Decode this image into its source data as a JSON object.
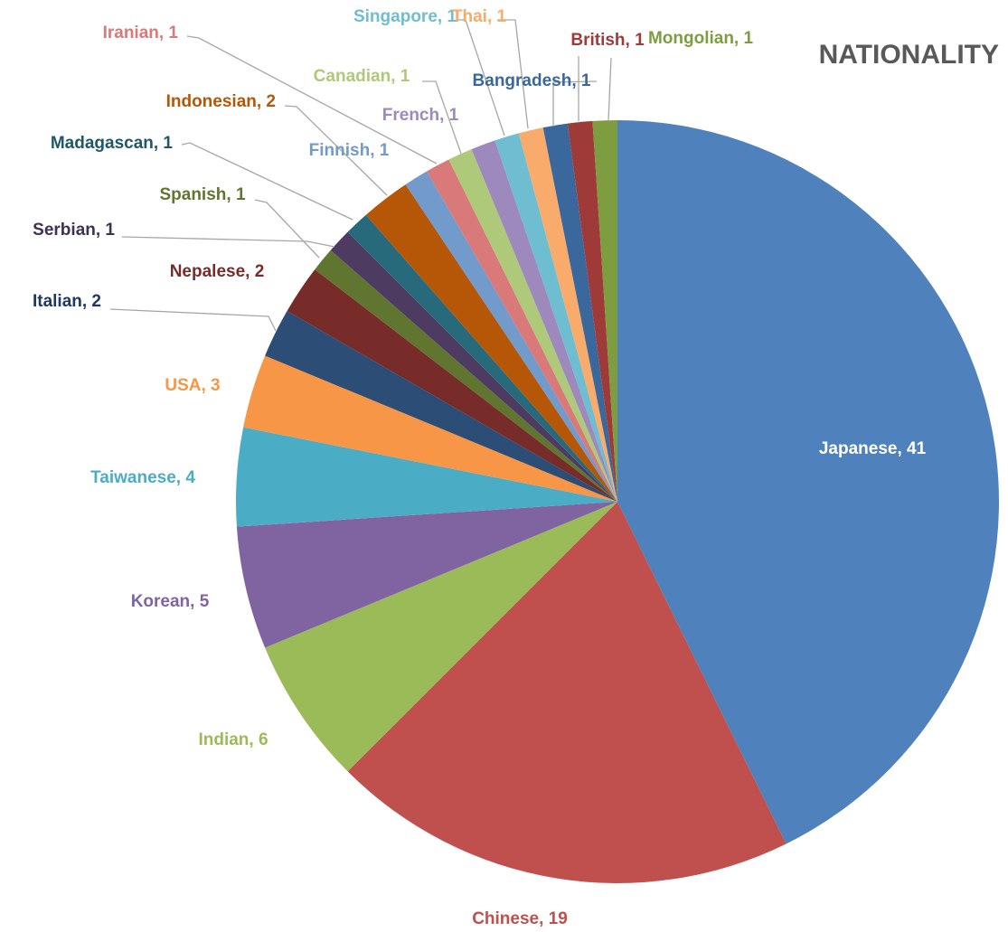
{
  "chart_data": {
    "type": "pie",
    "title": "NATIONALITY",
    "slices": [
      {
        "label": "Japanese",
        "value": 41,
        "color": "#4f81bd"
      },
      {
        "label": "Chinese",
        "value": 19,
        "color": "#c0504d"
      },
      {
        "label": "Indian",
        "value": 6,
        "color": "#9bbb59"
      },
      {
        "label": "Korean",
        "value": 5,
        "color": "#8064a2"
      },
      {
        "label": "Taiwanese",
        "value": 4,
        "color": "#4bacc6"
      },
      {
        "label": "USA",
        "value": 3,
        "color": "#f79646"
      },
      {
        "label": "Italian",
        "value": 2,
        "color": "#2c4d75"
      },
      {
        "label": "Nepalese",
        "value": 2,
        "color": "#772c2a"
      },
      {
        "label": "Spanish",
        "value": 1,
        "color": "#5f7530"
      },
      {
        "label": "Serbian",
        "value": 1,
        "color": "#4d3b62"
      },
      {
        "label": "Madagascan",
        "value": 1,
        "color": "#276a7c"
      },
      {
        "label": "Indonesian",
        "value": 2,
        "color": "#b65708"
      },
      {
        "label": "Finnish",
        "value": 1,
        "color": "#729aca"
      },
      {
        "label": "Iranian",
        "value": 1,
        "color": "#d9797a"
      },
      {
        "label": "Canadian",
        "value": 1,
        "color": "#afc97a"
      },
      {
        "label": "French",
        "value": 1,
        "color": "#9d89bb"
      },
      {
        "label": "Singapore",
        "value": 1,
        "color": "#6fbdd1"
      },
      {
        "label": "Thai",
        "value": 1,
        "color": "#f9ab6b"
      },
      {
        "label": "Bangradesh",
        "value": 1,
        "color": "#3a679c"
      },
      {
        "label": "British",
        "value": 1,
        "color": "#9e3a38"
      },
      {
        "label": "Mongolian",
        "value": 1,
        "color": "#7e9c40"
      }
    ],
    "label_colors": {
      "Japanese": "#ffffff",
      "Chinese": "#c0504d",
      "Indian": "#9bbb59",
      "Korean": "#8064a2",
      "Taiwanese": "#4bacc6",
      "USA": "#f79646",
      "Italian": "#1f3864",
      "Nepalese": "#772c2a",
      "Spanish": "#5f7530",
      "Serbian": "#3f3151",
      "Madagascan": "#215868",
      "Indonesian": "#b65708",
      "Finnish": "#729aca",
      "Iranian": "#d9797a",
      "Canadian": "#afc97a",
      "French": "#9d89bb",
      "Singapore": "#6fbdd1",
      "Thai": "#f9ab6b",
      "Bangradesh": "#3a679c",
      "British": "#9e3a38",
      "Mongolian": "#7e9c40"
    },
    "data_labels": "category, value",
    "legend": "none"
  }
}
